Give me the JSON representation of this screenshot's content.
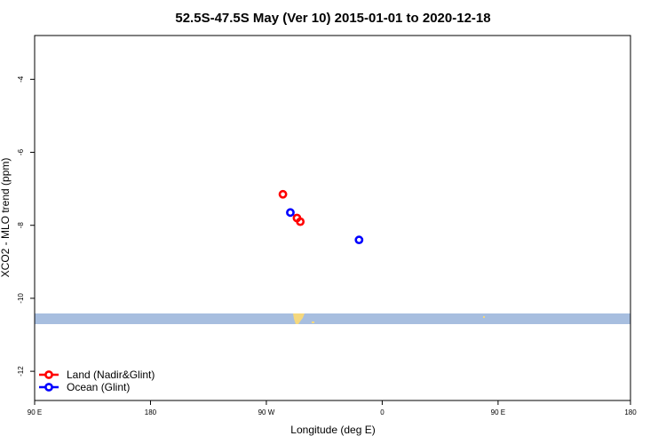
{
  "chart_data": {
    "type": "scatter",
    "title": "52.5S-47.5S May (Ver 10)   2015-01-01 to 2020-12-18",
    "xlabel": "Longitude (deg E)",
    "ylabel": "XCO2 - MLO trend (ppm)",
    "xlim": [
      90,
      450
    ],
    "ylim": [
      -12.8,
      -2.8
    ],
    "x_ticks": [
      {
        "value": 90,
        "label": "90 E"
      },
      {
        "value": 160,
        "label": "180"
      },
      {
        "value": 230,
        "label": "90 W"
      },
      {
        "value": 300,
        "label": "0"
      },
      {
        "value": 370,
        "label": "90 E"
      },
      {
        "value": 450,
        "label": "180"
      }
    ],
    "y_ticks": [
      {
        "value": -4,
        "label": "-4"
      },
      {
        "value": -6,
        "label": "-6"
      },
      {
        "value": -8,
        "label": "-8"
      },
      {
        "value": -10,
        "label": "-10"
      },
      {
        "value": -12,
        "label": "-12"
      }
    ],
    "series": [
      {
        "name": "Land (Nadir&Glint)",
        "color": "#ff0000",
        "points": [
          {
            "x": 240,
            "y": -7.15
          },
          {
            "x": 248.5,
            "y": -7.8
          },
          {
            "x": 250.5,
            "y": -7.9
          }
        ]
      },
      {
        "name": "Ocean (Glint)",
        "color": "#0000ff",
        "points": [
          {
            "x": 244.5,
            "y": -7.65
          },
          {
            "x": 286,
            "y": -8.4
          }
        ]
      }
    ],
    "legend_placement": "bottom-left",
    "grid": false,
    "band_color": "#a7bedf",
    "land_color": "#f5d87d"
  }
}
